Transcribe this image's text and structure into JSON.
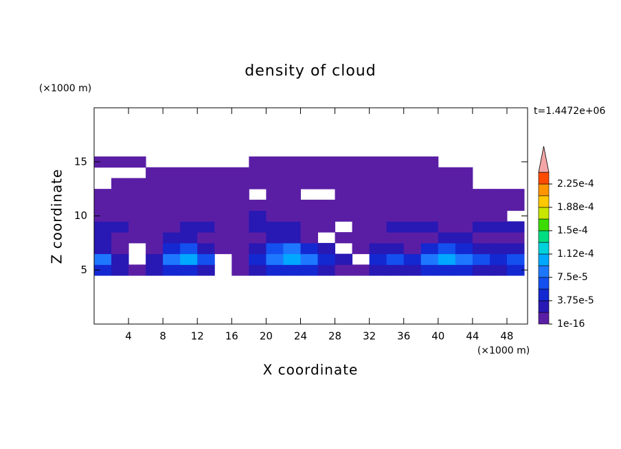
{
  "chart_data": {
    "type": "contour",
    "title": "density of cloud",
    "x_label": "X coordinate",
    "y_label": "Z coordinate",
    "x_unit": "(×1000 m)",
    "y_unit": "(×1000 m)",
    "time_label": "t=1.4472e+06",
    "xlim": [
      0,
      50.4
    ],
    "ylim": [
      0,
      20
    ],
    "xticks": [
      4,
      8,
      12,
      16,
      20,
      24,
      28,
      32,
      36,
      40,
      44,
      48
    ],
    "yticks": [
      5,
      10,
      15
    ],
    "x": [
      1,
      3,
      5,
      7,
      9,
      11,
      13,
      15,
      17,
      19,
      21,
      23,
      25,
      27,
      29,
      31,
      33,
      35,
      37,
      39,
      41,
      43,
      45,
      47,
      49
    ],
    "y": [
      5,
      6,
      7,
      8,
      9,
      10,
      11,
      12,
      13,
      14,
      15
    ],
    "z": [
      [
        4.5e-05,
        2.5e-05,
        1e-05,
        2.5e-05,
        4.5e-05,
        4.5e-05,
        2.5e-05,
        null,
        1e-05,
        2.5e-05,
        4.5e-05,
        4.5e-05,
        4.5e-05,
        2.5e-05,
        1e-05,
        1e-05,
        2.5e-05,
        2.5e-05,
        2.5e-05,
        4.5e-05,
        4.5e-05,
        4.5e-05,
        2.5e-05,
        2.5e-05,
        4.5e-05
      ],
      [
        8.5e-05,
        2.5e-05,
        null,
        2.5e-05,
        8.5e-05,
        0.0001,
        6.5e-05,
        null,
        1e-05,
        4.5e-05,
        8.5e-05,
        0.0001,
        8.5e-05,
        4.5e-05,
        2.5e-05,
        null,
        4.5e-05,
        6.5e-05,
        4.5e-05,
        8.5e-05,
        0.0001,
        8.5e-05,
        6.5e-05,
        4.5e-05,
        6.5e-05
      ],
      [
        2.5e-05,
        1e-05,
        null,
        1e-05,
        4.5e-05,
        6.5e-05,
        2.5e-05,
        1e-05,
        1e-05,
        2.5e-05,
        6.5e-05,
        8.5e-05,
        4.5e-05,
        2.5e-05,
        null,
        1e-05,
        2.5e-05,
        2.5e-05,
        1e-05,
        4.5e-05,
        6.5e-05,
        4.5e-05,
        2.5e-05,
        2.5e-05,
        2.5e-05
      ],
      [
        2.5e-05,
        1e-05,
        1e-05,
        1e-05,
        2.5e-05,
        2.5e-05,
        1e-05,
        1e-05,
        1e-05,
        1e-05,
        2.5e-05,
        2.5e-05,
        1e-05,
        null,
        1e-05,
        1e-05,
        1e-05,
        1e-05,
        1e-05,
        1e-05,
        2.5e-05,
        2.5e-05,
        1e-05,
        1e-05,
        1e-05
      ],
      [
        2.5e-05,
        2.5e-05,
        1e-05,
        1e-05,
        1e-05,
        2.5e-05,
        2.5e-05,
        1e-05,
        1e-05,
        2.5e-05,
        2.5e-05,
        2.5e-05,
        1e-05,
        1e-05,
        null,
        1e-05,
        1e-05,
        2.5e-05,
        2.5e-05,
        2.5e-05,
        1e-05,
        1e-05,
        2.5e-05,
        2.5e-05,
        2.5e-05
      ],
      [
        1e-05,
        1e-05,
        1e-05,
        1e-05,
        1e-05,
        1e-05,
        1e-05,
        1e-05,
        1e-05,
        2.5e-05,
        1e-05,
        1e-05,
        1e-05,
        1e-05,
        1e-05,
        1e-05,
        1e-05,
        1e-05,
        1e-05,
        1e-05,
        1e-05,
        1e-05,
        1e-05,
        1e-05,
        null
      ],
      [
        1e-05,
        1e-05,
        1e-05,
        1e-05,
        1e-05,
        1e-05,
        1e-05,
        1e-05,
        1e-05,
        1e-05,
        1e-05,
        1e-05,
        1e-05,
        1e-05,
        1e-05,
        1e-05,
        1e-05,
        1e-05,
        1e-05,
        1e-05,
        1e-05,
        1e-05,
        1e-05,
        1e-05,
        1e-05
      ],
      [
        1e-05,
        1e-05,
        1e-05,
        1e-05,
        1e-05,
        1e-05,
        1e-05,
        1e-05,
        1e-05,
        null,
        1e-05,
        1e-05,
        null,
        null,
        1e-05,
        1e-05,
        1e-05,
        1e-05,
        1e-05,
        1e-05,
        1e-05,
        1e-05,
        1e-05,
        1e-05,
        1e-05
      ],
      [
        null,
        1e-05,
        1e-05,
        1e-05,
        1e-05,
        1e-05,
        1e-05,
        1e-05,
        1e-05,
        1e-05,
        1e-05,
        1e-05,
        1e-05,
        1e-05,
        1e-05,
        1e-05,
        1e-05,
        1e-05,
        1e-05,
        1e-05,
        1e-05,
        1e-05,
        null,
        null,
        null
      ],
      [
        null,
        null,
        null,
        1e-05,
        1e-05,
        1e-05,
        1e-05,
        1e-05,
        1e-05,
        1e-05,
        1e-05,
        1e-05,
        1e-05,
        1e-05,
        1e-05,
        1e-05,
        1e-05,
        1e-05,
        1e-05,
        1e-05,
        1e-05,
        1e-05,
        null,
        null,
        null
      ],
      [
        1e-05,
        1e-05,
        1e-05,
        null,
        null,
        null,
        null,
        null,
        null,
        1e-05,
        1e-05,
        1e-05,
        1e-05,
        1e-05,
        1e-05,
        1e-05,
        1e-05,
        1e-05,
        1e-05,
        1e-05,
        null,
        null,
        null,
        null,
        null
      ]
    ],
    "levels": [
      1e-16,
      1.875e-05,
      3.75e-05,
      5.625e-05,
      7.5e-05,
      9.375e-05,
      0.0001125,
      0.00013125,
      0.00015,
      0.00016875,
      0.0001875,
      0.00020625,
      0.000225,
      0.00024375
    ],
    "colors": [
      "#5a1ea5",
      "#2818b4",
      "#1428d2",
      "#1450f0",
      "#1e78ff",
      "#00a8ff",
      "#00d2dc",
      "#00dc82",
      "#3cdc00",
      "#c8e600",
      "#ffc800",
      "#ff9600",
      "#ff4b00"
    ],
    "extend_color": "#f4a6a6",
    "colorbar_ticks": [
      {
        "value": 1e-16,
        "label": "1e-16"
      },
      {
        "value": 3.75e-05,
        "label": "3.75e-5"
      },
      {
        "value": 7.5e-05,
        "label": "7.5e-5"
      },
      {
        "value": 0.0001125,
        "label": "1.12e-4"
      },
      {
        "value": 0.00015,
        "label": "1.5e-4"
      },
      {
        "value": 0.0001875,
        "label": "1.88e-4"
      },
      {
        "value": 0.000225,
        "label": "2.25e-4"
      }
    ]
  }
}
